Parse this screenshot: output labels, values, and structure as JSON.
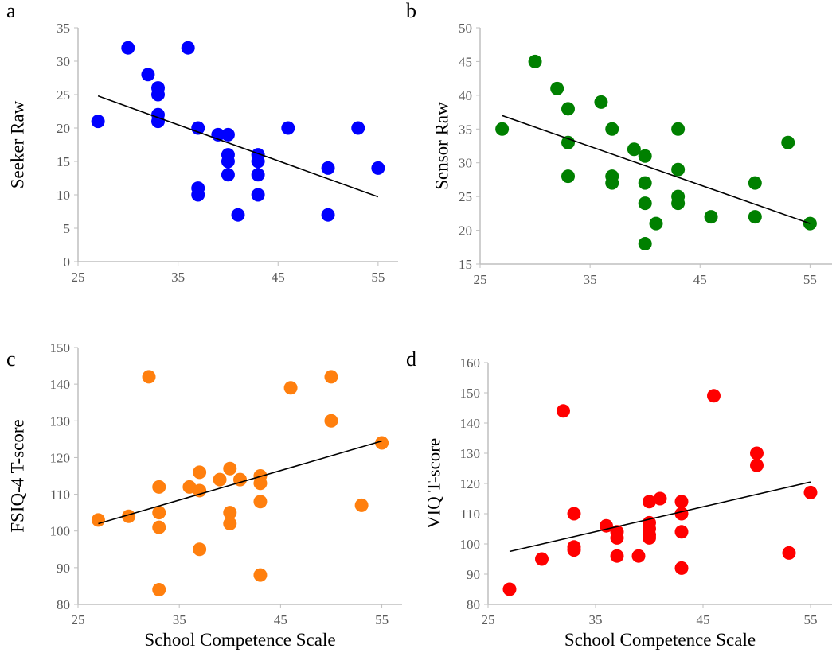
{
  "chart_data": [
    {
      "type": "scatter",
      "panel_label": "a",
      "xlabel": "",
      "ylabel": "Seeker Raw",
      "xlim": [
        25,
        57
      ],
      "ylim": [
        0,
        35
      ],
      "xticks": [
        25,
        35,
        45,
        55
      ],
      "yticks": [
        0,
        5,
        10,
        15,
        20,
        25,
        30,
        35
      ],
      "color": "#0000ff",
      "points": [
        [
          27,
          21
        ],
        [
          30,
          32
        ],
        [
          32,
          28
        ],
        [
          33,
          26
        ],
        [
          33,
          25
        ],
        [
          33,
          22
        ],
        [
          33,
          21
        ],
        [
          36,
          32
        ],
        [
          37,
          20
        ],
        [
          37,
          11
        ],
        [
          37,
          10
        ],
        [
          39,
          19
        ],
        [
          40,
          19
        ],
        [
          40,
          16
        ],
        [
          40,
          15
        ],
        [
          40,
          13
        ],
        [
          41,
          7
        ],
        [
          43,
          16
        ],
        [
          43,
          15
        ],
        [
          43,
          13
        ],
        [
          43,
          10
        ],
        [
          46,
          20
        ],
        [
          50,
          14
        ],
        [
          50,
          7
        ],
        [
          53,
          20
        ],
        [
          55,
          14
        ]
      ],
      "trendline": [
        [
          27,
          24.8
        ],
        [
          55,
          9.7
        ]
      ]
    },
    {
      "type": "scatter",
      "panel_label": "b",
      "xlabel": "",
      "ylabel": "Sensor Raw",
      "xlim": [
        25,
        57
      ],
      "ylim": [
        15,
        50
      ],
      "xticks": [
        25,
        35,
        45,
        55
      ],
      "yticks": [
        15,
        20,
        25,
        30,
        35,
        40,
        45,
        50
      ],
      "color": "#008000",
      "points": [
        [
          27,
          35
        ],
        [
          30,
          45
        ],
        [
          32,
          41
        ],
        [
          33,
          38
        ],
        [
          33,
          33
        ],
        [
          33,
          28
        ],
        [
          36,
          39
        ],
        [
          37,
          35
        ],
        [
          37,
          28
        ],
        [
          37,
          27
        ],
        [
          39,
          32
        ],
        [
          40,
          31
        ],
        [
          40,
          27
        ],
        [
          40,
          24
        ],
        [
          40,
          18
        ],
        [
          41,
          21
        ],
        [
          43,
          35
        ],
        [
          43,
          29
        ],
        [
          43,
          25
        ],
        [
          43,
          24
        ],
        [
          46,
          22
        ],
        [
          50,
          27
        ],
        [
          50,
          22
        ],
        [
          53,
          33
        ],
        [
          55,
          21
        ]
      ],
      "trendline": [
        [
          27,
          37
        ],
        [
          55,
          21
        ]
      ]
    },
    {
      "type": "scatter",
      "panel_label": "c",
      "xlabel": "School Competence Scale",
      "ylabel": "FSIQ-4 T-score",
      "xlim": [
        25,
        57
      ],
      "ylim": [
        80,
        150
      ],
      "xticks": [
        25,
        35,
        45,
        55
      ],
      "yticks": [
        80,
        90,
        100,
        110,
        120,
        130,
        140,
        150
      ],
      "color": "#ff7f0e",
      "points": [
        [
          27,
          103
        ],
        [
          30,
          104
        ],
        [
          32,
          142
        ],
        [
          33,
          112
        ],
        [
          33,
          105
        ],
        [
          33,
          101
        ],
        [
          33,
          84
        ],
        [
          36,
          112
        ],
        [
          37,
          116
        ],
        [
          37,
          111
        ],
        [
          37,
          95
        ],
        [
          39,
          114
        ],
        [
          40,
          117
        ],
        [
          40,
          105
        ],
        [
          40,
          102
        ],
        [
          41,
          114
        ],
        [
          43,
          115
        ],
        [
          43,
          113
        ],
        [
          43,
          108
        ],
        [
          43,
          88
        ],
        [
          46,
          139
        ],
        [
          50,
          142
        ],
        [
          50,
          130
        ],
        [
          53,
          107
        ],
        [
          55,
          124
        ]
      ],
      "trendline": [
        [
          27,
          102
        ],
        [
          55,
          124.5
        ]
      ]
    },
    {
      "type": "scatter",
      "panel_label": "d",
      "xlabel": "School Competence Scale",
      "ylabel": "VIQ T-score",
      "xlim": [
        25,
        57
      ],
      "ylim": [
        80,
        160
      ],
      "xticks": [
        25,
        35,
        45,
        55
      ],
      "yticks": [
        80,
        90,
        100,
        110,
        120,
        130,
        140,
        150,
        160
      ],
      "color": "#ff0000",
      "points": [
        [
          27,
          85
        ],
        [
          30,
          95
        ],
        [
          32,
          144
        ],
        [
          33,
          110
        ],
        [
          33,
          99
        ],
        [
          33,
          98
        ],
        [
          36,
          106
        ],
        [
          37,
          104
        ],
        [
          37,
          102
        ],
        [
          37,
          96
        ],
        [
          39,
          96
        ],
        [
          40,
          114
        ],
        [
          40,
          107
        ],
        [
          40,
          105
        ],
        [
          40,
          103
        ],
        [
          40,
          102
        ],
        [
          41,
          115
        ],
        [
          43,
          114
        ],
        [
          43,
          110
        ],
        [
          43,
          104
        ],
        [
          43,
          92
        ],
        [
          46,
          149
        ],
        [
          50,
          130
        ],
        [
          50,
          126
        ],
        [
          53,
          97
        ],
        [
          55,
          117
        ]
      ],
      "trendline": [
        [
          27,
          97.5
        ],
        [
          55,
          120.5
        ]
      ]
    }
  ]
}
